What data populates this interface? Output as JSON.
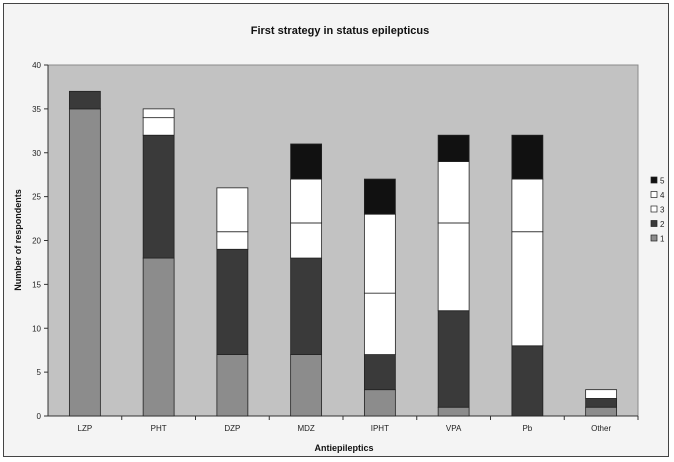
{
  "chart_data": {
    "type": "bar",
    "stacked": true,
    "title": "First strategy in status epilepticus",
    "xlabel": "Antiepileptics",
    "ylabel": "Number of respondents",
    "ylim": [
      0,
      40
    ],
    "yticks": [
      0,
      5,
      10,
      15,
      20,
      25,
      30,
      35,
      40
    ],
    "grid": false,
    "legend_position": "right",
    "categories": [
      "LZP",
      "PHT",
      "DZP",
      "MDZ",
      "IPHT",
      "VPA",
      "Pb",
      "Other"
    ],
    "series": [
      {
        "name": "1",
        "color": "#8c8c8c",
        "values": [
          35,
          18,
          7,
          7,
          3,
          1,
          0,
          1
        ]
      },
      {
        "name": "2",
        "color": "#3a3a3a",
        "values": [
          2,
          14,
          12,
          11,
          4,
          11,
          8,
          1
        ]
      },
      {
        "name": "3",
        "color": "#ffffff",
        "values": [
          0,
          2,
          2,
          4,
          7,
          10,
          13,
          0
        ]
      },
      {
        "name": "4",
        "color": "#ffffff",
        "values": [
          0,
          1,
          5,
          5,
          9,
          7,
          6,
          1
        ]
      },
      {
        "name": "5",
        "color": "#111111",
        "values": [
          0,
          0,
          0,
          4,
          4,
          3,
          5,
          0
        ]
      }
    ],
    "legend_order": [
      "5",
      "4",
      "3",
      "2",
      "1"
    ]
  }
}
